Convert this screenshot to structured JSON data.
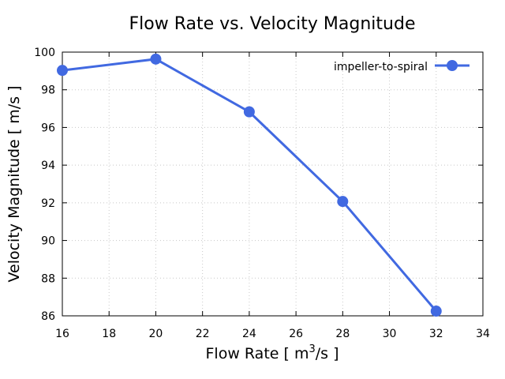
{
  "chart_data": {
    "type": "line",
    "title": "Flow Rate vs. Velocity Magnitude",
    "xlabel": "Flow Rate [ m",
    "xlabel_sup": "3",
    "xlabel_tail": "/s ]",
    "ylabel": "Velocity Magnitude [ m/s ]",
    "xlim": [
      16,
      34
    ],
    "ylim": [
      86,
      100
    ],
    "xticks": [
      16,
      18,
      20,
      22,
      24,
      26,
      28,
      30,
      32,
      34
    ],
    "yticks": [
      86,
      88,
      90,
      92,
      94,
      96,
      98,
      100
    ],
    "grid": true,
    "legend_position": "top-right",
    "series": [
      {
        "name": "impeller-to-spiral",
        "color": "#4169e1",
        "marker": "circle",
        "x": [
          16,
          20,
          24,
          28,
          32
        ],
        "y": [
          99.03,
          99.63,
          96.83,
          92.07,
          86.25
        ]
      }
    ]
  }
}
